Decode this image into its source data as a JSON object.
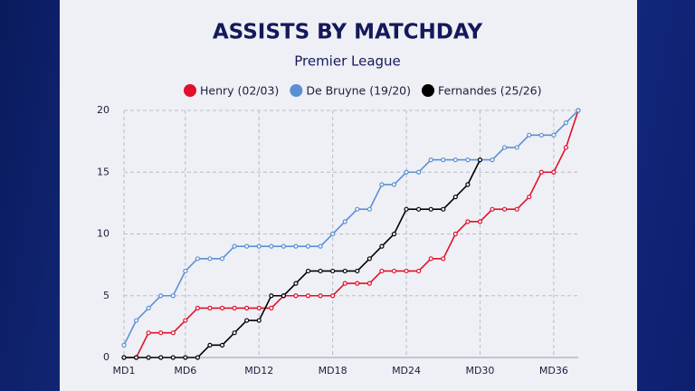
{
  "chart_data": {
    "type": "line",
    "title": "ASSISTS BY MATCHDAY",
    "subtitle": "Premier League",
    "x": [
      1,
      2,
      3,
      4,
      5,
      6,
      7,
      8,
      9,
      10,
      11,
      12,
      13,
      14,
      15,
      16,
      17,
      18,
      19,
      20,
      21,
      22,
      23,
      24,
      25,
      26,
      27,
      28,
      29,
      30,
      31,
      32,
      33,
      34,
      35,
      36,
      37,
      38
    ],
    "xlim": [
      1,
      38
    ],
    "xticks": [
      {
        "value": 1,
        "label": "MD1"
      },
      {
        "value": 6,
        "label": "MD6"
      },
      {
        "value": 12,
        "label": "MD12"
      },
      {
        "value": 18,
        "label": "MD18"
      },
      {
        "value": 24,
        "label": "MD24"
      },
      {
        "value": 30,
        "label": "MD30"
      },
      {
        "value": 36,
        "label": "MD36"
      }
    ],
    "ylim": [
      0,
      20
    ],
    "yticks": [
      0,
      5,
      10,
      15,
      20
    ],
    "grid": true,
    "legend": "top",
    "series": [
      {
        "name": "Henry (02/03)",
        "color": "#e0112b",
        "values": [
          0,
          0,
          2,
          2,
          2,
          3,
          4,
          4,
          4,
          4,
          4,
          4,
          4,
          5,
          5,
          5,
          5,
          5,
          6,
          6,
          6,
          7,
          7,
          7,
          7,
          8,
          8,
          10,
          11,
          11,
          12,
          12,
          12,
          13,
          15,
          15,
          17,
          20
        ]
      },
      {
        "name": "De Bruyne (19/20)",
        "color": "#5b8fd4",
        "values": [
          1,
          3,
          4,
          5,
          5,
          7,
          8,
          8,
          8,
          9,
          9,
          9,
          9,
          9,
          9,
          9,
          9,
          10,
          11,
          12,
          12,
          14,
          14,
          15,
          15,
          16,
          16,
          16,
          16,
          16,
          16,
          17,
          17,
          18,
          18,
          18,
          19,
          20
        ]
      },
      {
        "name": "Fernandes (25/26)",
        "color": "#000000",
        "values": [
          0,
          0,
          0,
          0,
          0,
          0,
          0,
          1,
          1,
          2,
          3,
          3,
          5,
          5,
          6,
          7,
          7,
          7,
          7,
          7,
          8,
          9,
          10,
          12,
          12,
          12,
          12,
          13,
          14,
          16,
          null,
          null,
          null,
          null,
          null,
          null,
          null,
          null
        ]
      }
    ]
  }
}
